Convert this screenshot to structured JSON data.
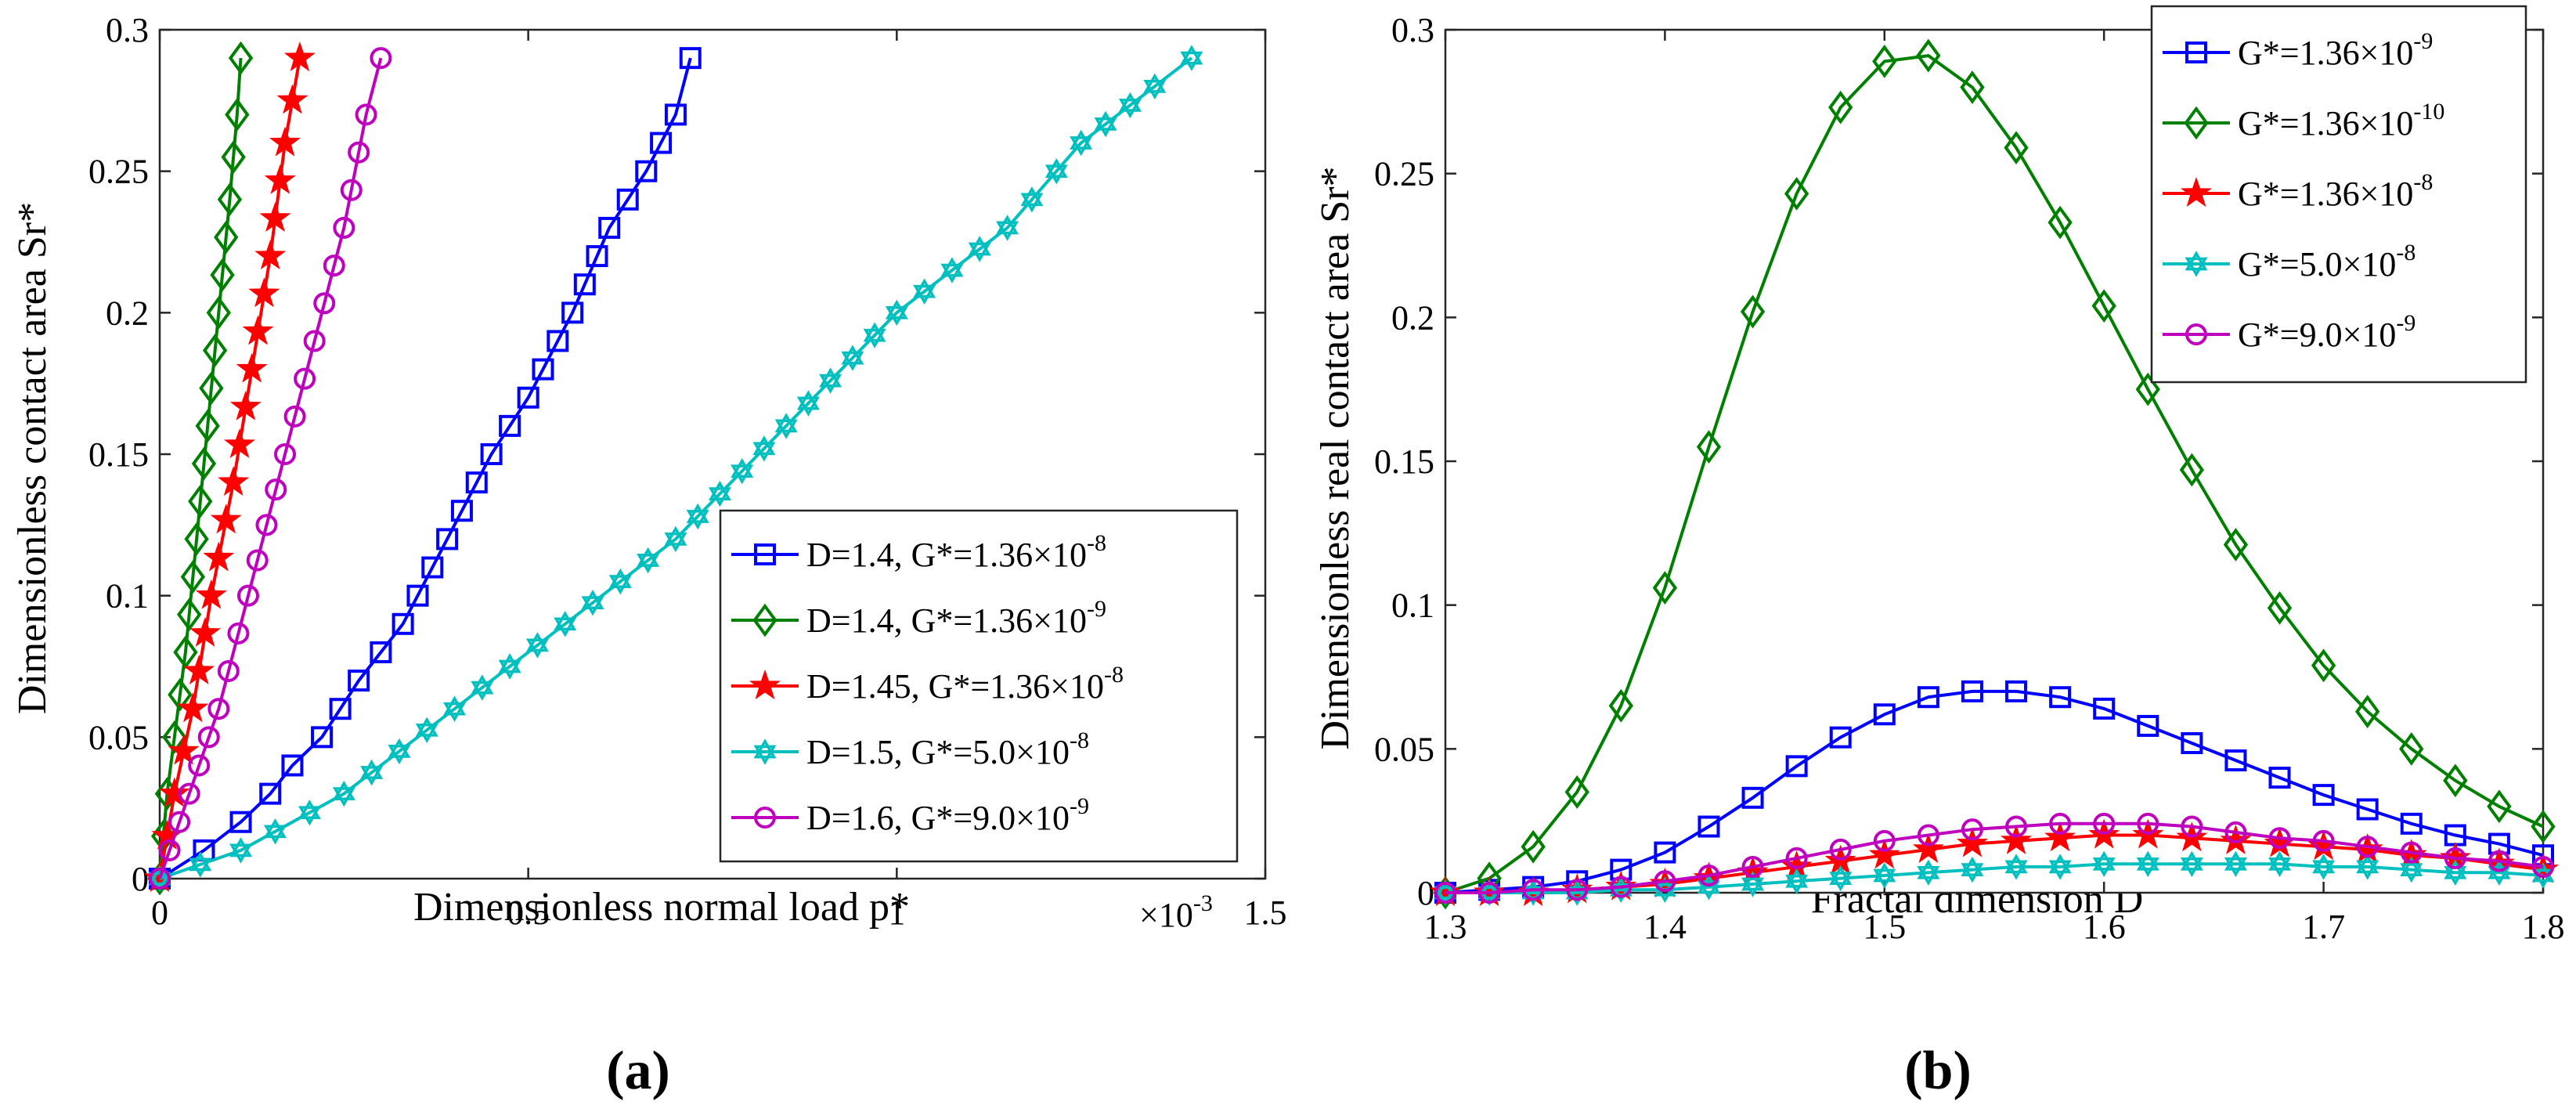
{
  "chart_data": [
    {
      "panel_label": "(a)",
      "type": "line",
      "xlabel": "Dimensionless normal load p*",
      "ylabel": "Dimensionless contact area Sr*",
      "x_multiplier_base": "×10",
      "x_multiplier_exp": "-3",
      "xlim": [
        0,
        1.5
      ],
      "ylim": [
        0,
        0.3
      ],
      "xticks": [
        0,
        0.5,
        1,
        1.5
      ],
      "xtick_labels": [
        "0",
        "0.5",
        "1",
        "1.5"
      ],
      "yticks": [
        0,
        0.05,
        0.1,
        0.15,
        0.2,
        0.25,
        0.3
      ],
      "ytick_labels": [
        "0",
        "0.05",
        "0.1",
        "0.15",
        "0.2",
        "0.25",
        "0.3"
      ],
      "legend_position": "bottom-right",
      "series": [
        {
          "name": "D=1.4, G*=1.36×10^-8",
          "legend_text": "D=1.4, G*=1.36×10",
          "legend_exp": "-8",
          "color": "#0000FF",
          "marker": "square",
          "points": [
            [
              0,
              0
            ],
            [
              0.06,
              0.01
            ],
            [
              0.11,
              0.02
            ],
            [
              0.15,
              0.03
            ],
            [
              0.18,
              0.04
            ],
            [
              0.22,
              0.05
            ],
            [
              0.27,
              0.07
            ],
            [
              0.33,
              0.09
            ],
            [
              0.39,
              0.12
            ],
            [
              0.45,
              0.15
            ],
            [
              0.5,
              0.17
            ],
            [
              0.56,
              0.2
            ],
            [
              0.61,
              0.23
            ],
            [
              0.66,
              0.25
            ],
            [
              0.7,
              0.27
            ],
            [
              0.72,
              0.29
            ]
          ]
        },
        {
          "name": "D=1.4, G*=1.36×10^-9",
          "legend_text": "D=1.4, G*=1.36×10",
          "legend_exp": "-9",
          "color": "#008000",
          "marker": "diamond",
          "points": [
            [
              0,
              0
            ],
            [
              0.01,
              0.03
            ],
            [
              0.02,
              0.05
            ],
            [
              0.035,
              0.08
            ],
            [
              0.05,
              0.12
            ],
            [
              0.065,
              0.16
            ],
            [
              0.08,
              0.2
            ],
            [
              0.095,
              0.24
            ],
            [
              0.105,
              0.27
            ],
            [
              0.11,
              0.29
            ]
          ]
        },
        {
          "name": "D=1.45, G*=1.36×10^-8",
          "legend_text": "D=1.45, G*=1.36×10",
          "legend_exp": "-8",
          "color": "#FF0000",
          "marker": "star",
          "points": [
            [
              0,
              0
            ],
            [
              0.02,
              0.03
            ],
            [
              0.045,
              0.06
            ],
            [
              0.07,
              0.1
            ],
            [
              0.1,
              0.14
            ],
            [
              0.125,
              0.18
            ],
            [
              0.15,
              0.22
            ],
            [
              0.17,
              0.26
            ],
            [
              0.19,
              0.29
            ]
          ]
        },
        {
          "name": "D=1.5, G*=5.0×10^-8",
          "legend_text": "D=1.5, G*=5.0×10",
          "legend_exp": "-8",
          "color": "#00BFBF",
          "marker": "hexagram",
          "points": [
            [
              0,
              0
            ],
            [
              0.11,
              0.01
            ],
            [
              0.25,
              0.03
            ],
            [
              0.4,
              0.06
            ],
            [
              0.55,
              0.09
            ],
            [
              0.7,
              0.12
            ],
            [
              0.85,
              0.16
            ],
            [
              1.0,
              0.2
            ],
            [
              1.15,
              0.23
            ],
            [
              1.25,
              0.26
            ],
            [
              1.35,
              0.28
            ],
            [
              1.4,
              0.29
            ]
          ]
        },
        {
          "name": "D=1.6, G*=9.0×10^-9",
          "legend_text": "D=1.6, G*=9.0×10",
          "legend_exp": "-9",
          "color": "#BF00BF",
          "marker": "circle",
          "points": [
            [
              0,
              0
            ],
            [
              0.04,
              0.03
            ],
            [
              0.08,
              0.06
            ],
            [
              0.12,
              0.1
            ],
            [
              0.17,
              0.15
            ],
            [
              0.21,
              0.19
            ],
            [
              0.25,
              0.23
            ],
            [
              0.28,
              0.27
            ],
            [
              0.3,
              0.29
            ]
          ]
        }
      ]
    },
    {
      "panel_label": "(b)",
      "type": "line",
      "xlabel": "Fractal dimension D",
      "ylabel": "Dimensionless real contact area Sr*",
      "xlim": [
        1.3,
        1.8
      ],
      "ylim": [
        0,
        0.3
      ],
      "xticks": [
        1.3,
        1.4,
        1.5,
        1.6,
        1.7,
        1.8
      ],
      "xtick_labels": [
        "1.3",
        "1.4",
        "1.5",
        "1.6",
        "1.7",
        "1.8"
      ],
      "yticks": [
        0,
        0.05,
        0.1,
        0.15,
        0.2,
        0.25,
        0.3
      ],
      "ytick_labels": [
        "0",
        "0.05",
        "0.1",
        "0.15",
        "0.2",
        "0.25",
        "0.3"
      ],
      "legend_position": "top-right",
      "x": [
        1.3,
        1.32,
        1.34,
        1.36,
        1.38,
        1.4,
        1.42,
        1.44,
        1.46,
        1.48,
        1.5,
        1.52,
        1.54,
        1.56,
        1.58,
        1.6,
        1.62,
        1.64,
        1.66,
        1.68,
        1.7,
        1.72,
        1.74,
        1.76,
        1.78,
        1.8
      ],
      "series": [
        {
          "name": "G*=1.36×10^-9",
          "legend_text": "G*=1.36×10",
          "legend_exp": "-9",
          "color": "#0000FF",
          "marker": "square",
          "values": [
            0.0,
            0.001,
            0.002,
            0.004,
            0.008,
            0.014,
            0.023,
            0.033,
            0.044,
            0.054,
            0.062,
            0.068,
            0.07,
            0.07,
            0.068,
            0.064,
            0.058,
            0.052,
            0.046,
            0.04,
            0.034,
            0.029,
            0.024,
            0.02,
            0.017,
            0.013
          ]
        },
        {
          "name": "G*=1.36×10^-10",
          "legend_text": "G*=1.36×10",
          "legend_exp": "-10",
          "color": "#008000",
          "marker": "diamond",
          "values": [
            0.0,
            0.005,
            0.016,
            0.035,
            0.065,
            0.106,
            0.155,
            0.202,
            0.243,
            0.273,
            0.289,
            0.291,
            0.28,
            0.259,
            0.233,
            0.204,
            0.175,
            0.147,
            0.121,
            0.099,
            0.079,
            0.063,
            0.05,
            0.039,
            0.03,
            0.023
          ]
        },
        {
          "name": "G*=1.36×10^-8",
          "legend_text": "G*=1.36×10",
          "legend_exp": "-8",
          "color": "#FF0000",
          "marker": "star",
          "values": [
            0.0,
            0.0,
            0.0,
            0.001,
            0.002,
            0.003,
            0.005,
            0.007,
            0.009,
            0.011,
            0.013,
            0.015,
            0.017,
            0.018,
            0.019,
            0.02,
            0.02,
            0.019,
            0.018,
            0.017,
            0.016,
            0.015,
            0.013,
            0.012,
            0.01,
            0.008
          ]
        },
        {
          "name": "G*=5.0×10^-8",
          "legend_text": "G*=5.0×10",
          "legend_exp": "-8",
          "color": "#00BFBF",
          "marker": "hexagram",
          "values": [
            0.0,
            0.0,
            0.0,
            0.0,
            0.001,
            0.001,
            0.002,
            0.003,
            0.004,
            0.005,
            0.006,
            0.007,
            0.008,
            0.009,
            0.009,
            0.01,
            0.01,
            0.01,
            0.01,
            0.01,
            0.009,
            0.009,
            0.008,
            0.007,
            0.007,
            0.006
          ]
        },
        {
          "name": "G*=9.0×10^-9",
          "legend_text": "G*=9.0×10",
          "legend_exp": "-9",
          "color": "#BF00BF",
          "marker": "circle",
          "values": [
            0.0,
            0.0,
            0.001,
            0.001,
            0.002,
            0.004,
            0.006,
            0.009,
            0.012,
            0.015,
            0.018,
            0.02,
            0.022,
            0.023,
            0.024,
            0.024,
            0.024,
            0.023,
            0.021,
            0.019,
            0.018,
            0.016,
            0.014,
            0.012,
            0.011,
            0.009
          ]
        }
      ]
    }
  ]
}
